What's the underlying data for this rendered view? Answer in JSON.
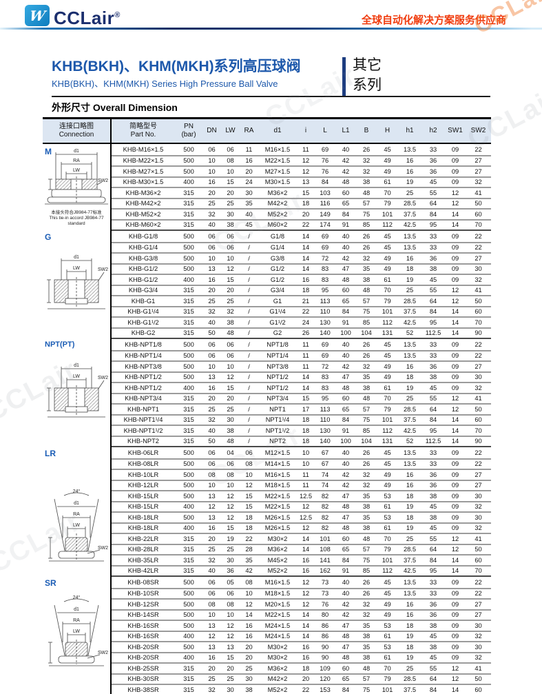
{
  "page": {
    "watermark": "CCLair"
  },
  "header": {
    "logo_text": "CCLair",
    "logo_reg": "®",
    "tagline": "全球自动化解决方案服务供应商"
  },
  "title": {
    "cn": "KHB(BKH)、KHM(MKH)系列高压球阀",
    "en": "KHB(BKH)、KHM(MKH) Series High Pressure Ball Valve",
    "side_line1": "其它",
    "side_line2": "系列",
    "section_heading": "外形尺寸 Overall Dimension"
  },
  "table": {
    "headers": {
      "connection_cn": "连接口略图",
      "connection_en": "Connection",
      "part_cn": "简略型号",
      "part_en": "Part No.",
      "pn": "PN",
      "pn_unit": "(bar)",
      "cols": [
        "DN",
        "LW",
        "RA",
        "d1",
        "i",
        "L",
        "L1",
        "B",
        "H",
        "h1",
        "h2",
        "SW1",
        "SW2"
      ]
    },
    "sections": [
      {
        "label": "M",
        "diagram": {
          "d1": "d1",
          "ra": "RA",
          "lw": "LW",
          "sw2": "SW2"
        },
        "note": [
          "本接头符合JB984-77标准",
          "This tie-in accord JB984-77",
          "standard"
        ],
        "rows": [
          [
            "KHB-M16×1.5",
            "500",
            "06",
            "06",
            "11",
            "M16×1.5",
            "11",
            "69",
            "40",
            "26",
            "45",
            "13.5",
            "33",
            "09",
            "22"
          ],
          [
            "KHB-M22×1.5",
            "500",
            "10",
            "08",
            "16",
            "M22×1.5",
            "12",
            "76",
            "42",
            "32",
            "49",
            "16",
            "36",
            "09",
            "27"
          ],
          [
            "KHB-M27×1.5",
            "500",
            "10",
            "10",
            "20",
            "M27×1.5",
            "12",
            "76",
            "42",
            "32",
            "49",
            "16",
            "36",
            "09",
            "27"
          ],
          [
            "KHB-M30×1.5",
            "400",
            "16",
            "15",
            "24",
            "M30×1.5",
            "13",
            "84",
            "48",
            "38",
            "61",
            "19",
            "45",
            "09",
            "32"
          ],
          [
            "KHB-M36×2",
            "315",
            "20",
            "20",
            "30",
            "M36×2",
            "15",
            "103",
            "60",
            "48",
            "70",
            "25",
            "55",
            "12",
            "41"
          ],
          [
            "KHB-M42×2",
            "315",
            "25",
            "25",
            "35",
            "M42×2",
            "18",
            "116",
            "65",
            "57",
            "79",
            "28.5",
            "64",
            "12",
            "50"
          ],
          [
            "KHB-M52×2",
            "315",
            "32",
            "30",
            "40",
            "M52×2",
            "20",
            "149",
            "84",
            "75",
            "101",
            "37.5",
            "84",
            "14",
            "60"
          ],
          [
            "KHB-M60×2",
            "315",
            "40",
            "38",
            "45",
            "M60×2",
            "22",
            "174",
            "91",
            "85",
            "112",
            "42.5",
            "95",
            "14",
            "70"
          ]
        ]
      },
      {
        "label": "G",
        "diagram": {
          "d1": "d1",
          "lw": "LW",
          "sw2": "SW2"
        },
        "rows": [
          [
            "KHB-G1/8",
            "500",
            "06",
            "06",
            "/",
            "G1/8",
            "14",
            "69",
            "40",
            "26",
            "45",
            "13.5",
            "33",
            "09",
            "22"
          ],
          [
            "KHB-G1/4",
            "500",
            "06",
            "06",
            "/",
            "G1/4",
            "14",
            "69",
            "40",
            "26",
            "45",
            "13.5",
            "33",
            "09",
            "22"
          ],
          [
            "KHB-G3/8",
            "500",
            "10",
            "10",
            "/",
            "G3/8",
            "14",
            "72",
            "42",
            "32",
            "49",
            "16",
            "36",
            "09",
            "27"
          ],
          [
            "KHB-G1/2",
            "500",
            "13",
            "12",
            "/",
            "G1/2",
            "14",
            "83",
            "47",
            "35",
            "49",
            "18",
            "38",
            "09",
            "30"
          ],
          [
            "KHB-G1/2",
            "400",
            "16",
            "15",
            "/",
            "G1/2",
            "16",
            "83",
            "48",
            "38",
            "61",
            "19",
            "45",
            "09",
            "32"
          ],
          [
            "KHB-G3/4",
            "315",
            "20",
            "20",
            "/",
            "G3/4",
            "18",
            "95",
            "60",
            "48",
            "70",
            "25",
            "55",
            "12",
            "41"
          ],
          [
            "KHB-G1",
            "315",
            "25",
            "25",
            "/",
            "G1",
            "21",
            "113",
            "65",
            "57",
            "79",
            "28.5",
            "64",
            "12",
            "50"
          ],
          [
            "KHB-G1¹/4",
            "315",
            "32",
            "32",
            "/",
            "G1¹/4",
            "22",
            "110",
            "84",
            "75",
            "101",
            "37.5",
            "84",
            "14",
            "60"
          ],
          [
            "KHB-G1¹/2",
            "315",
            "40",
            "38",
            "/",
            "G1¹/2",
            "24",
            "130",
            "91",
            "85",
            "112",
            "42.5",
            "95",
            "14",
            "70"
          ],
          [
            "KHB-G2",
            "315",
            "50",
            "48",
            "/",
            "G2",
            "26",
            "140",
            "100",
            "104",
            "131",
            "52",
            "112.5",
            "14",
            "90"
          ]
        ]
      },
      {
        "label": "NPT(PT)",
        "diagram": {
          "d1": "d1",
          "lw": "LW",
          "sw2": "SW2"
        },
        "rows": [
          [
            "KHB-NPT1/8",
            "500",
            "06",
            "06",
            "/",
            "NPT1/8",
            "11",
            "69",
            "40",
            "26",
            "45",
            "13.5",
            "33",
            "09",
            "22"
          ],
          [
            "KHB-NPT1/4",
            "500",
            "06",
            "06",
            "/",
            "NPT1/4",
            "11",
            "69",
            "40",
            "26",
            "45",
            "13.5",
            "33",
            "09",
            "22"
          ],
          [
            "KHB-NPT3/8",
            "500",
            "10",
            "10",
            "/",
            "NPT3/8",
            "11",
            "72",
            "42",
            "32",
            "49",
            "16",
            "36",
            "09",
            "27"
          ],
          [
            "KHB-NPT1/2",
            "500",
            "13",
            "12",
            "/",
            "NPT1/2",
            "14",
            "83",
            "47",
            "35",
            "49",
            "18",
            "38",
            "09",
            "30"
          ],
          [
            "KHB-NPT1/2",
            "400",
            "16",
            "15",
            "/",
            "NPT1/2",
            "14",
            "83",
            "48",
            "38",
            "61",
            "19",
            "45",
            "09",
            "32"
          ],
          [
            "KHB-NPT3/4",
            "315",
            "20",
            "20",
            "/",
            "NPT3/4",
            "15",
            "95",
            "60",
            "48",
            "70",
            "25",
            "55",
            "12",
            "41"
          ],
          [
            "KHB-NPT1",
            "315",
            "25",
            "25",
            "/",
            "NPT1",
            "17",
            "113",
            "65",
            "57",
            "79",
            "28.5",
            "64",
            "12",
            "50"
          ],
          [
            "KHB-NPT1¹/4",
            "315",
            "32",
            "30",
            "/",
            "NPT1¹/4",
            "18",
            "110",
            "84",
            "75",
            "101",
            "37.5",
            "84",
            "14",
            "60"
          ],
          [
            "KHB-NPT1¹/2",
            "315",
            "40",
            "38",
            "/",
            "NPT1¹/2",
            "18",
            "130",
            "91",
            "85",
            "112",
            "42.5",
            "95",
            "14",
            "70"
          ],
          [
            "KHB-NPT2",
            "315",
            "50",
            "48",
            "/",
            "NPT2",
            "18",
            "140",
            "100",
            "104",
            "131",
            "52",
            "112.5",
            "14",
            "90"
          ]
        ]
      },
      {
        "label": "LR",
        "diagram": {
          "angle": "24°",
          "d1": "d1",
          "ra": "RA",
          "lw": "LW",
          "sw2": "SW2"
        },
        "rows": [
          [
            "KHB-06LR",
            "500",
            "06",
            "04",
            "06",
            "M12×1.5",
            "10",
            "67",
            "40",
            "26",
            "45",
            "13.5",
            "33",
            "09",
            "22"
          ],
          [
            "KHB-08LR",
            "500",
            "06",
            "06",
            "08",
            "M14×1.5",
            "10",
            "67",
            "40",
            "26",
            "45",
            "13.5",
            "33",
            "09",
            "22"
          ],
          [
            "KHB-10LR",
            "500",
            "08",
            "08",
            "10",
            "M16×1.5",
            "11",
            "74",
            "42",
            "32",
            "49",
            "16",
            "36",
            "09",
            "27"
          ],
          [
            "KHB-12LR",
            "500",
            "10",
            "10",
            "12",
            "M18×1.5",
            "11",
            "74",
            "42",
            "32",
            "49",
            "16",
            "36",
            "09",
            "27"
          ],
          [
            "KHB-15LR",
            "500",
            "13",
            "12",
            "15",
            "M22×1.5",
            "12.5",
            "82",
            "47",
            "35",
            "53",
            "18",
            "38",
            "09",
            "30"
          ],
          [
            "KHB-15LR",
            "400",
            "12",
            "12",
            "15",
            "M22×1.5",
            "12",
            "82",
            "48",
            "38",
            "61",
            "19",
            "45",
            "09",
            "32"
          ],
          [
            "KHB-18LR",
            "500",
            "13",
            "12",
            "18",
            "M26×1.5",
            "12.5",
            "82",
            "47",
            "35",
            "53",
            "18",
            "38",
            "09",
            "30"
          ],
          [
            "KHB-18LR",
            "400",
            "16",
            "15",
            "18",
            "M26×1.5",
            "12",
            "82",
            "48",
            "38",
            "61",
            "19",
            "45",
            "09",
            "32"
          ],
          [
            "KHB-22LR",
            "315",
            "20",
            "19",
            "22",
            "M30×2",
            "14",
            "101",
            "60",
            "48",
            "70",
            "25",
            "55",
            "12",
            "41"
          ],
          [
            "KHB-28LR",
            "315",
            "25",
            "25",
            "28",
            "M36×2",
            "14",
            "108",
            "65",
            "57",
            "79",
            "28.5",
            "64",
            "12",
            "50"
          ],
          [
            "KHB-35LR",
            "315",
            "32",
            "30",
            "35",
            "M45×2",
            "16",
            "141",
            "84",
            "75",
            "101",
            "37.5",
            "84",
            "14",
            "60"
          ],
          [
            "KHB-42LR",
            "315",
            "40",
            "36",
            "42",
            "M52×2",
            "16",
            "162",
            "91",
            "85",
            "112",
            "42.5",
            "95",
            "14",
            "70"
          ]
        ]
      },
      {
        "label": "SR",
        "diagram": {
          "angle": "24°",
          "d1": "d1",
          "ra": "RA",
          "lw": "LW",
          "sw2": "SW2"
        },
        "rows": [
          [
            "KHB-08SR",
            "500",
            "06",
            "05",
            "08",
            "M16×1.5",
            "12",
            "73",
            "40",
            "26",
            "45",
            "13.5",
            "33",
            "09",
            "22"
          ],
          [
            "KHB-10SR",
            "500",
            "06",
            "06",
            "10",
            "M18×1.5",
            "12",
            "73",
            "40",
            "26",
            "45",
            "13.5",
            "33",
            "09",
            "22"
          ],
          [
            "KHB-12SR",
            "500",
            "08",
            "08",
            "12",
            "M20×1.5",
            "12",
            "76",
            "42",
            "32",
            "49",
            "16",
            "36",
            "09",
            "27"
          ],
          [
            "KHB-14SR",
            "500",
            "10",
            "10",
            "14",
            "M22×1.5",
            "14",
            "80",
            "42",
            "32",
            "49",
            "16",
            "36",
            "09",
            "27"
          ],
          [
            "KHB-16SR",
            "500",
            "13",
            "12",
            "16",
            "M24×1.5",
            "14",
            "86",
            "47",
            "35",
            "53",
            "18",
            "38",
            "09",
            "30"
          ],
          [
            "KHB-16SR",
            "400",
            "12",
            "12",
            "16",
            "M24×1.5",
            "14",
            "86",
            "48",
            "38",
            "61",
            "19",
            "45",
            "09",
            "32"
          ],
          [
            "KHB-20SR",
            "500",
            "13",
            "13",
            "20",
            "M30×2",
            "16",
            "90",
            "47",
            "35",
            "53",
            "18",
            "38",
            "09",
            "30"
          ],
          [
            "KHB-20SR",
            "400",
            "16",
            "15",
            "20",
            "M30×2",
            "16",
            "90",
            "48",
            "38",
            "61",
            "19",
            "45",
            "09",
            "32"
          ],
          [
            "KHB-25SR",
            "315",
            "20",
            "20",
            "25",
            "M36×2",
            "18",
            "109",
            "60",
            "48",
            "70",
            "25",
            "55",
            "12",
            "41"
          ],
          [
            "KHB-30SR",
            "315",
            "25",
            "25",
            "30",
            "M42×2",
            "20",
            "120",
            "65",
            "57",
            "79",
            "28.5",
            "64",
            "12",
            "50"
          ],
          [
            "KHB-38SR",
            "315",
            "32",
            "30",
            "38",
            "M52×2",
            "22",
            "153",
            "84",
            "75",
            "101",
            "37.5",
            "84",
            "14",
            "60"
          ]
        ]
      }
    ]
  }
}
